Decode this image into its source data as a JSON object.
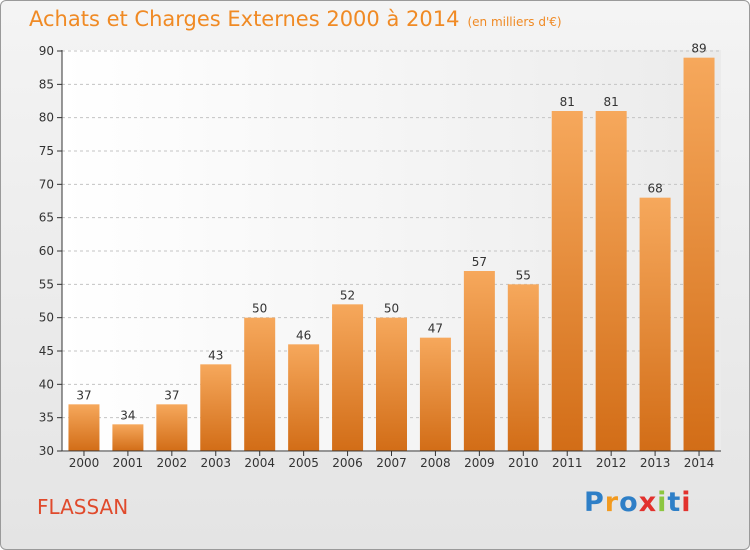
{
  "header": {
    "title": "Achats et Charges Externes 2000 à 2014",
    "subtitle": "(en milliers d'€)"
  },
  "footer": {
    "commune": "FLASSAN",
    "logo": "Proxiti",
    "logo_colors": [
      "#2e7fc7",
      "#f29a1f",
      "#2e7fc7",
      "#e2312d",
      "#8cc63f",
      "#2e7fc7",
      "#e2312d"
    ]
  },
  "colors": {
    "bar_light": "#f6a85c",
    "bar_dark": "#d26d17",
    "title": "#f08a24",
    "commune": "#e04a2c"
  },
  "chart_data": {
    "type": "bar",
    "categories": [
      "2000",
      "2001",
      "2002",
      "2003",
      "2004",
      "2005",
      "2006",
      "2007",
      "2008",
      "2009",
      "2010",
      "2011",
      "2012",
      "2013",
      "2014"
    ],
    "values": [
      37,
      34,
      37,
      43,
      50,
      46,
      52,
      50,
      47,
      57,
      55,
      81,
      81,
      68,
      89
    ],
    "ylim": [
      30,
      90
    ],
    "yticks": [
      30,
      35,
      40,
      45,
      50,
      55,
      60,
      65,
      70,
      75,
      80,
      85,
      90
    ],
    "grid": "horizontal dashed",
    "data_labels": true
  }
}
